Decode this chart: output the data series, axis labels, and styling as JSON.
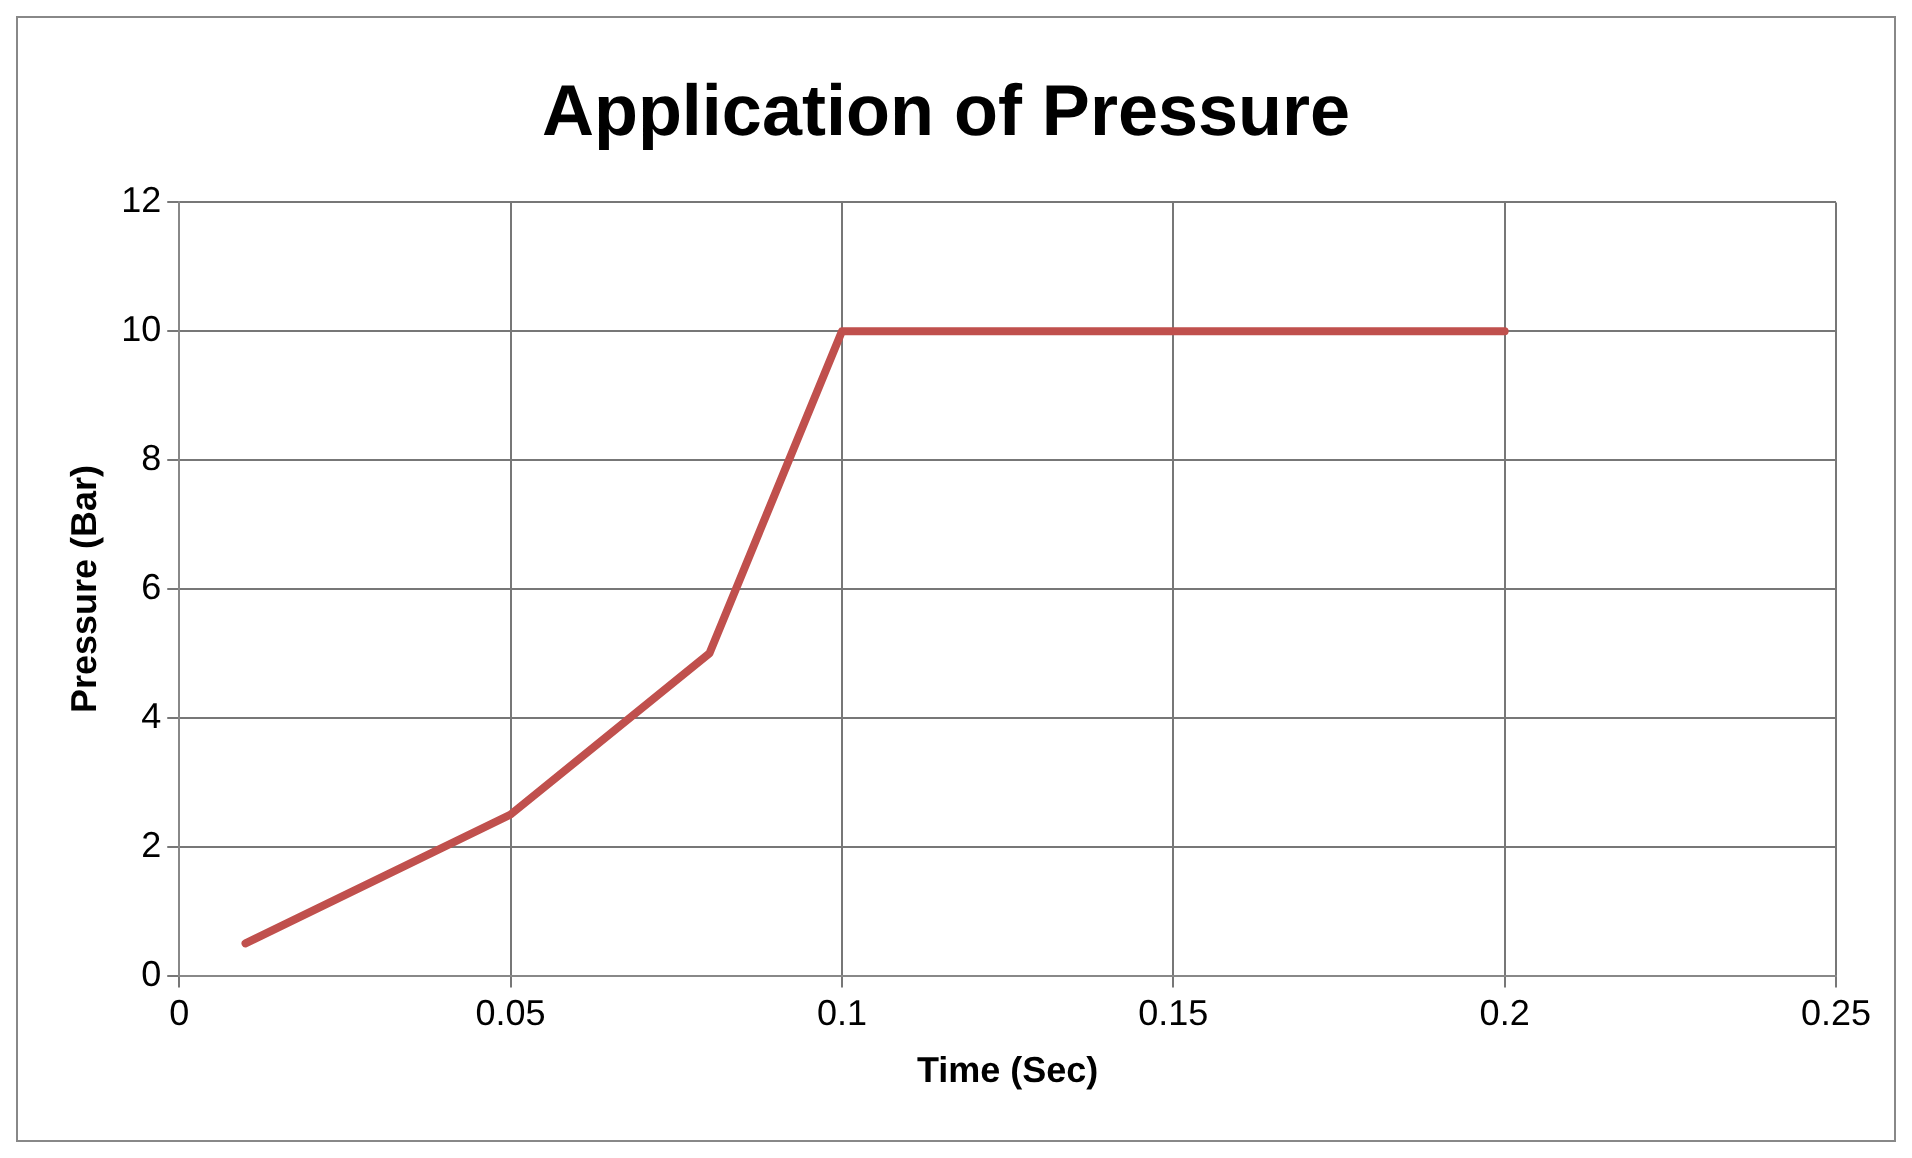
{
  "chart_data": {
    "type": "line",
    "title": "Application of Pressure",
    "xlabel": "Time (Sec)",
    "ylabel": "Pressure (Bar)",
    "x": [
      0.01,
      0.05,
      0.08,
      0.1,
      0.2
    ],
    "series": [
      {
        "color": "#c0504d",
        "values": [
          0.5,
          2.5,
          5,
          10,
          10
        ]
      }
    ],
    "xlim": [
      0,
      0.25
    ],
    "xticks": [
      0,
      0.05,
      0.1,
      0.15,
      0.2,
      0.25
    ],
    "ylim": [
      0,
      12
    ],
    "yticks": [
      0,
      2,
      4,
      6,
      8,
      10,
      12
    ],
    "grid": true,
    "legend": false,
    "marker": "none",
    "line_style": "solid"
  }
}
